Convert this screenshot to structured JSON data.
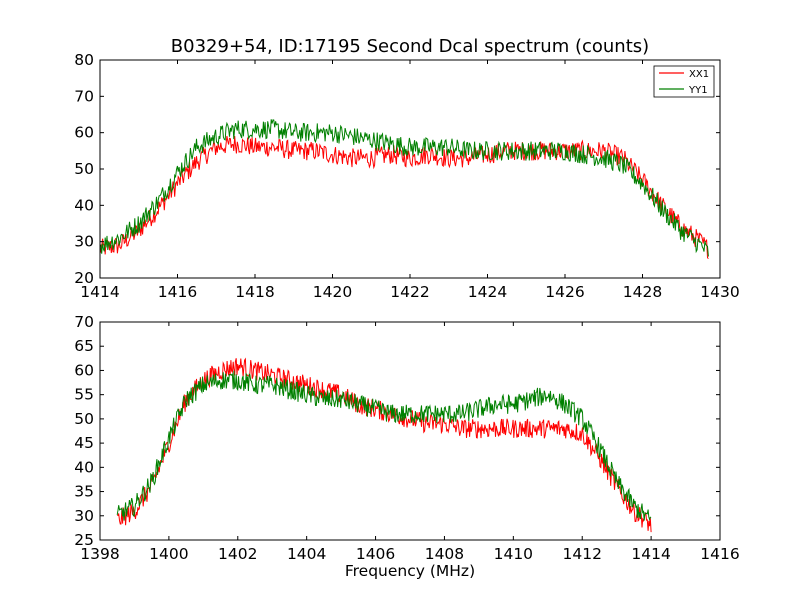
{
  "chart_data": [
    {
      "type": "line",
      "title": "B0329+54, ID:17195 Second Dcal spectrum (counts)",
      "xlabel": "",
      "ylabel": "",
      "xlim": [
        1414,
        1430
      ],
      "ylim": [
        20,
        80
      ],
      "xticks": [
        1414,
        1416,
        1418,
        1420,
        1422,
        1424,
        1426,
        1428,
        1430
      ],
      "yticks": [
        20,
        30,
        40,
        50,
        60,
        70,
        80
      ],
      "grid": false,
      "legend": "top-right",
      "series": [
        {
          "name": "XX1",
          "color": "#ff0000",
          "x": [
            1414.0,
            1414.5,
            1415.0,
            1415.5,
            1416.0,
            1416.5,
            1417.0,
            1417.5,
            1418.0,
            1418.5,
            1419.0,
            1419.5,
            1420.0,
            1420.5,
            1421.0,
            1421.5,
            1422.0,
            1422.5,
            1423.0,
            1423.5,
            1424.0,
            1424.5,
            1425.0,
            1425.5,
            1426.0,
            1426.5,
            1427.0,
            1427.5,
            1428.0,
            1428.5,
            1429.0,
            1429.5,
            1429.7
          ],
          "y": [
            28,
            29,
            33,
            39,
            46,
            52,
            56,
            57,
            56,
            56,
            55,
            55,
            54,
            53,
            53,
            54,
            53,
            54,
            53,
            53,
            54,
            55,
            55,
            55,
            55,
            55,
            55,
            53,
            47,
            40,
            34,
            30,
            28
          ]
        },
        {
          "name": "YY1",
          "color": "#008000",
          "x": [
            1414.0,
            1414.5,
            1415.0,
            1415.5,
            1416.0,
            1416.5,
            1417.0,
            1417.5,
            1418.0,
            1418.5,
            1419.0,
            1419.5,
            1420.0,
            1420.5,
            1421.0,
            1421.5,
            1422.0,
            1422.5,
            1423.0,
            1423.5,
            1424.0,
            1424.5,
            1425.0,
            1425.5,
            1426.0,
            1426.5,
            1427.0,
            1427.5,
            1428.0,
            1428.5,
            1429.0,
            1429.5,
            1429.7
          ],
          "y": [
            29,
            31,
            35,
            41,
            49,
            56,
            59,
            61,
            61,
            61,
            60,
            60,
            60,
            59,
            58,
            57,
            56,
            56,
            56,
            55,
            55,
            55,
            55,
            55,
            55,
            54,
            53,
            51,
            46,
            39,
            33,
            29,
            27
          ]
        }
      ]
    },
    {
      "type": "line",
      "title": "",
      "xlabel": "Frequency (MHz)",
      "ylabel": "",
      "xlim": [
        1398,
        1416
      ],
      "ylim": [
        25,
        70
      ],
      "xticks": [
        1398,
        1400,
        1402,
        1404,
        1406,
        1408,
        1410,
        1412,
        1414,
        1416
      ],
      "yticks": [
        25,
        30,
        35,
        40,
        45,
        50,
        55,
        60,
        65,
        70
      ],
      "grid": false,
      "series": [
        {
          "color": "#ff0000",
          "x": [
            1398.5,
            1399.0,
            1399.5,
            1400.0,
            1400.5,
            1401.0,
            1401.5,
            1402.0,
            1402.5,
            1403.0,
            1403.5,
            1404.0,
            1404.5,
            1405.0,
            1405.5,
            1406.0,
            1406.5,
            1407.0,
            1407.5,
            1408.0,
            1408.5,
            1409.0,
            1409.5,
            1410.0,
            1410.5,
            1411.0,
            1411.5,
            1412.0,
            1412.5,
            1413.0,
            1413.5,
            1414.0
          ],
          "y": [
            29,
            31,
            36,
            45,
            54,
            58,
            60,
            61,
            60,
            59,
            58,
            57,
            56,
            55,
            53,
            52,
            51,
            50,
            49,
            49,
            48,
            48,
            48,
            48,
            48,
            48,
            48,
            47,
            42,
            36,
            31,
            28
          ]
        },
        {
          "color": "#008000",
          "x": [
            1398.5,
            1399.0,
            1399.5,
            1400.0,
            1400.5,
            1401.0,
            1401.5,
            1402.0,
            1402.5,
            1403.0,
            1403.5,
            1404.0,
            1404.5,
            1405.0,
            1405.5,
            1406.0,
            1406.5,
            1407.0,
            1407.5,
            1408.0,
            1408.5,
            1409.0,
            1409.5,
            1410.0,
            1410.5,
            1411.0,
            1411.5,
            1412.0,
            1412.5,
            1413.0,
            1413.5,
            1414.0
          ],
          "y": [
            30,
            32,
            37,
            46,
            54,
            57,
            58,
            58,
            57,
            57,
            56,
            55,
            54,
            54,
            53,
            52,
            51,
            51,
            51,
            51,
            51,
            52,
            53,
            53,
            54,
            55,
            53,
            50,
            44,
            37,
            32,
            29
          ]
        }
      ]
    }
  ]
}
